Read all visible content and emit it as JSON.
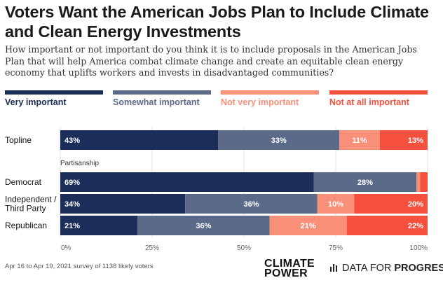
{
  "title": "Voters Want the American Jobs Plan to Include Climate and Clean Energy Investments",
  "subtitle": "How important or not important do you think it is to include proposals in the American Jobs Plan that will help America combat climate change and create an equitable clean energy economy that uplifts workers and invests in disadvantaged communities?",
  "footnote": "Apr 16 to Apr 19, 2021 survey of 1138 likely voters",
  "logos": {
    "climate_power_line1": "CLIMATE",
    "climate_power_line2": "POWER",
    "dfp_prefix": "DATA FOR ",
    "dfp_bold": "PROGRESS"
  },
  "chart_data": {
    "type": "bar",
    "orientation": "horizontal",
    "stacked": true,
    "categories": [
      "Topline",
      "Democrat",
      "Independent / Third Party",
      "Republican"
    ],
    "category_lines": [
      [
        "Topline"
      ],
      [
        "Democrat"
      ],
      [
        "Independent /",
        "Third Party"
      ],
      [
        "Republican"
      ]
    ],
    "group_label": "Partisanship",
    "series": [
      {
        "name": "Very important",
        "color": "#1b2e59",
        "values": [
          43,
          69,
          34,
          21
        ],
        "labels": [
          "43%",
          "69%",
          "34%",
          "21%"
        ]
      },
      {
        "name": "Somewhat important",
        "color": "#5c6a8a",
        "values": [
          33,
          28,
          36,
          36
        ],
        "labels": [
          "33%",
          "28%",
          "36%",
          "36%"
        ]
      },
      {
        "name": "Not very important",
        "color": "#f8907a",
        "values": [
          11,
          1,
          10,
          21
        ],
        "labels": [
          "11%",
          "",
          "10%",
          "21%"
        ]
      },
      {
        "name": "Not at all important",
        "color": "#f4503d",
        "values": [
          13,
          2,
          20,
          22
        ],
        "labels": [
          "13%",
          "",
          "20%",
          "22%"
        ]
      }
    ],
    "xlim": [
      0,
      100
    ],
    "xticks": [
      "0%",
      "25%",
      "50%",
      "75%",
      "100%"
    ],
    "grid": true,
    "legend_position": "top"
  }
}
